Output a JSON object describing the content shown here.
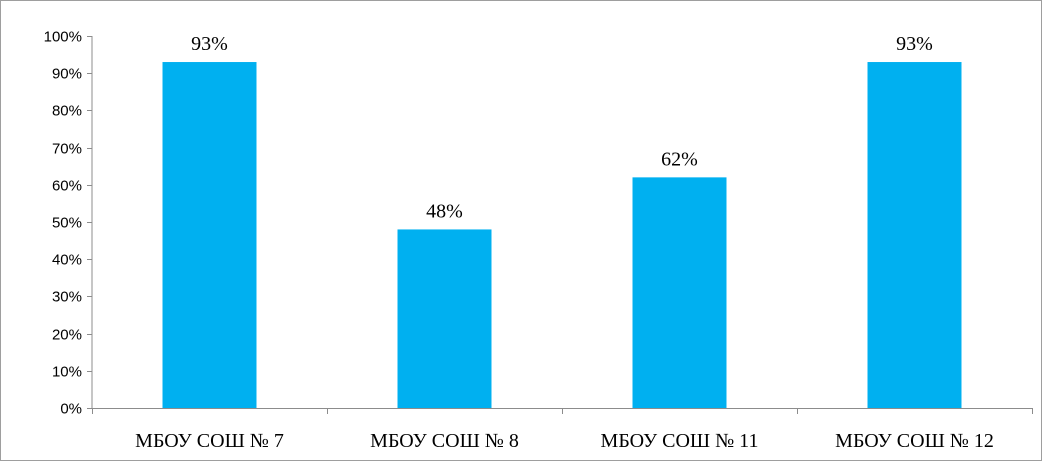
{
  "chart_data": {
    "type": "bar",
    "categories": [
      "МБОУ СОШ № 7",
      "МБОУ СОШ № 8",
      "МБОУ СОШ № 11",
      "МБОУ СОШ № 12"
    ],
    "values": [
      93,
      48,
      62,
      93
    ],
    "data_labels": [
      "93%",
      "48%",
      "62%",
      "93%"
    ],
    "title": "",
    "xlabel": "",
    "ylabel": "",
    "ylim": [
      0,
      100
    ],
    "yticks": [
      0,
      10,
      20,
      30,
      40,
      50,
      60,
      70,
      80,
      90,
      100
    ],
    "ytick_labels": [
      "0%",
      "10%",
      "20%",
      "30%",
      "40%",
      "50%",
      "60%",
      "70%",
      "80%",
      "90%",
      "100%"
    ],
    "grid": false,
    "legend": "none",
    "bar_color": "#00b0f0"
  }
}
